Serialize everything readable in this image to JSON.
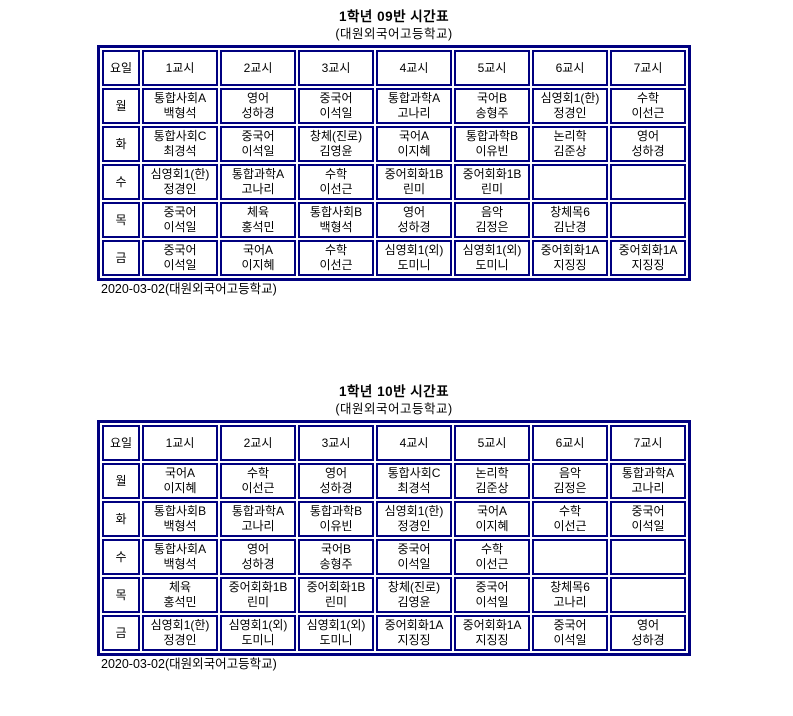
{
  "colors": {
    "border": "#000080",
    "text": "#000000",
    "background": "#ffffff"
  },
  "sheets": [
    {
      "title": "1학년 09반 시간표",
      "subtitle": "(대원외국어고등학교)",
      "footer": "2020-03-02(대원외국어고등학교)",
      "columns": [
        "요일",
        "1교시",
        "2교시",
        "3교시",
        "4교시",
        "5교시",
        "6교시",
        "7교시"
      ],
      "rows": [
        {
          "day": "월",
          "cells": [
            [
              "통합사회A",
              "백형석"
            ],
            [
              "영어",
              "성하경"
            ],
            [
              "중국어",
              "이석일"
            ],
            [
              "통합과학A",
              "고나리"
            ],
            [
              "국어B",
              "송형주"
            ],
            [
              "심영회1(한)",
              "정경인"
            ],
            [
              "수학",
              "이선근"
            ]
          ]
        },
        {
          "day": "화",
          "cells": [
            [
              "통합사회C",
              "최경석"
            ],
            [
              "중국어",
              "이석일"
            ],
            [
              "창체(진로)",
              "김영윤"
            ],
            [
              "국어A",
              "이지혜"
            ],
            [
              "통합과학B",
              "이유빈"
            ],
            [
              "논리학",
              "김준상"
            ],
            [
              "영어",
              "성하경"
            ]
          ]
        },
        {
          "day": "수",
          "cells": [
            [
              "심영회1(한)",
              "정경인"
            ],
            [
              "통합과학A",
              "고나리"
            ],
            [
              "수학",
              "이선근"
            ],
            [
              "중어회화1B",
              "린미"
            ],
            [
              "중어회화1B",
              "린미"
            ],
            [
              "",
              ""
            ],
            [
              "",
              ""
            ]
          ]
        },
        {
          "day": "목",
          "cells": [
            [
              "중국어",
              "이석일"
            ],
            [
              "체육",
              "홍석민"
            ],
            [
              "통합사회B",
              "백형석"
            ],
            [
              "영어",
              "성하경"
            ],
            [
              "음악",
              "김정은"
            ],
            [
              "창체목6",
              "김난경"
            ],
            [
              "",
              ""
            ]
          ]
        },
        {
          "day": "금",
          "cells": [
            [
              "중국어",
              "이석일"
            ],
            [
              "국어A",
              "이지혜"
            ],
            [
              "수학",
              "이선근"
            ],
            [
              "심영회1(외)",
              "도미니"
            ],
            [
              "심영회1(외)",
              "도미니"
            ],
            [
              "중어회화1A",
              "지징징"
            ],
            [
              "중어회화1A",
              "지징징"
            ]
          ]
        }
      ]
    },
    {
      "title": "1학년 10반 시간표",
      "subtitle": "(대원외국어고등학교)",
      "footer": "2020-03-02(대원외국어고등학교)",
      "columns": [
        "요일",
        "1교시",
        "2교시",
        "3교시",
        "4교시",
        "5교시",
        "6교시",
        "7교시"
      ],
      "rows": [
        {
          "day": "월",
          "cells": [
            [
              "국어A",
              "이지혜"
            ],
            [
              "수학",
              "이선근"
            ],
            [
              "영어",
              "성하경"
            ],
            [
              "통합사회C",
              "최경석"
            ],
            [
              "논리학",
              "김준상"
            ],
            [
              "음악",
              "김정은"
            ],
            [
              "통합과학A",
              "고나리"
            ]
          ]
        },
        {
          "day": "화",
          "cells": [
            [
              "통합사회B",
              "백형석"
            ],
            [
              "통합과학A",
              "고나리"
            ],
            [
              "통합과학B",
              "이유빈"
            ],
            [
              "심영회1(한)",
              "정경인"
            ],
            [
              "국어A",
              "이지혜"
            ],
            [
              "수학",
              "이선근"
            ],
            [
              "중국어",
              "이석일"
            ]
          ]
        },
        {
          "day": "수",
          "cells": [
            [
              "통합사회A",
              "백형석"
            ],
            [
              "영어",
              "성하경"
            ],
            [
              "국어B",
              "송형주"
            ],
            [
              "중국어",
              "이석일"
            ],
            [
              "수학",
              "이선근"
            ],
            [
              "",
              ""
            ],
            [
              "",
              ""
            ]
          ]
        },
        {
          "day": "목",
          "cells": [
            [
              "체육",
              "홍석민"
            ],
            [
              "중어회화1B",
              "린미"
            ],
            [
              "중어회화1B",
              "린미"
            ],
            [
              "창체(진로)",
              "김영윤"
            ],
            [
              "중국어",
              "이석일"
            ],
            [
              "창체목6",
              "고나리"
            ],
            [
              "",
              ""
            ]
          ]
        },
        {
          "day": "금",
          "cells": [
            [
              "심영회1(한)",
              "정경인"
            ],
            [
              "심영회1(외)",
              "도미니"
            ],
            [
              "심영회1(외)",
              "도미니"
            ],
            [
              "중어회화1A",
              "지징징"
            ],
            [
              "중어회화1A",
              "지징징"
            ],
            [
              "중국어",
              "이석일"
            ],
            [
              "영어",
              "성하경"
            ]
          ]
        }
      ]
    }
  ]
}
